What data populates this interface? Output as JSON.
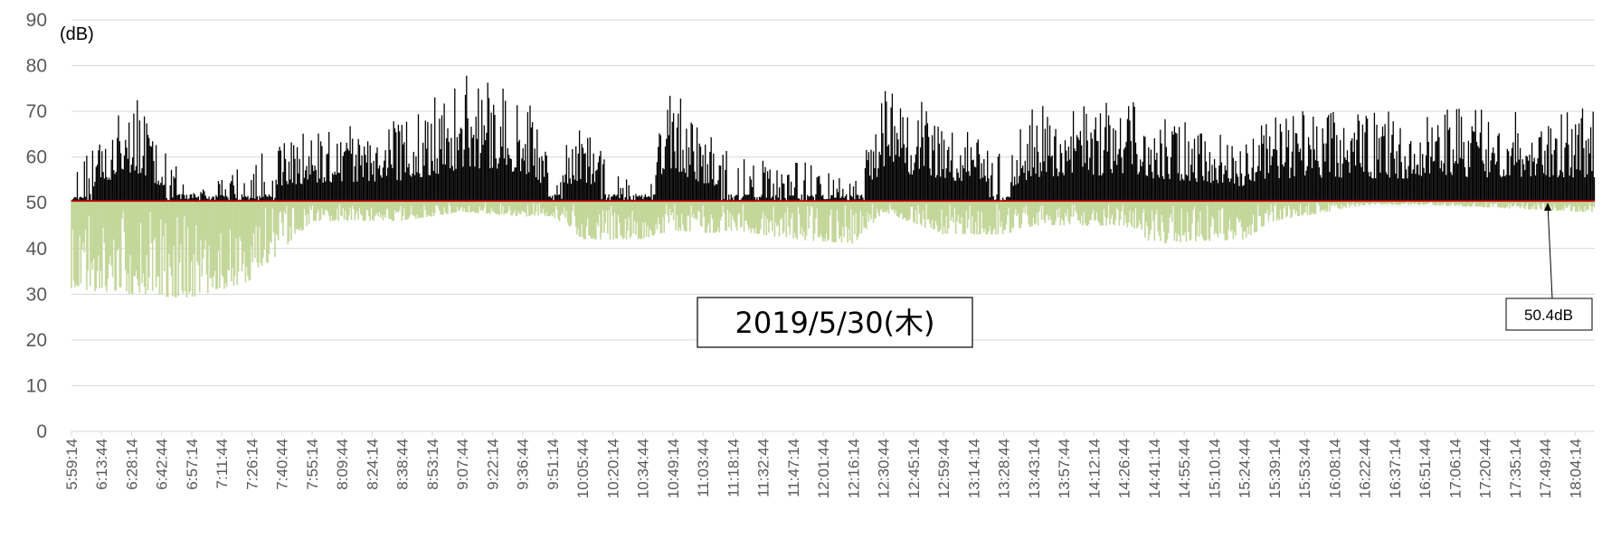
{
  "chart_data": {
    "type": "bar",
    "ylabel": "(dB)",
    "ylim": [
      0,
      90
    ],
    "yticks": [
      0,
      10,
      20,
      30,
      40,
      50,
      60,
      70,
      80,
      90
    ],
    "xticks": [
      "5:59:14",
      "6:13:44",
      "6:28:14",
      "6:42:44",
      "6:57:14",
      "7:11:44",
      "7:26:14",
      "7:40:44",
      "7:55:14",
      "8:09:44",
      "8:24:14",
      "8:38:44",
      "8:53:14",
      "9:07:44",
      "9:22:14",
      "9:36:44",
      "9:51:14",
      "10:05:44",
      "10:20:14",
      "10:34:44",
      "10:49:14",
      "11:03:44",
      "11:18:14",
      "11:32:44",
      "11:47:14",
      "12:01:44",
      "12:16:14",
      "12:30:44",
      "12:45:14",
      "12:59:44",
      "13:14:14",
      "13:28:44",
      "13:43:14",
      "13:57:44",
      "14:12:14",
      "14:26:44",
      "14:41:14",
      "14:55:44",
      "15:10:14",
      "15:24:44",
      "15:39:14",
      "15:53:44",
      "16:08:14",
      "16:22:44",
      "16:37:14",
      "16:51:44",
      "17:06:14",
      "17:20:44",
      "17:35:14",
      "17:49:44",
      "18:04:14"
    ],
    "baseline": 50.4,
    "baseline_label": "50.4dB",
    "grid": true,
    "series": [
      {
        "role": "above",
        "color": "#000000"
      },
      {
        "role": "below",
        "color": "#c4d79b"
      }
    ],
    "profile": {
      "x": [
        "5:59:14",
        "6:28:14",
        "6:57:14",
        "7:26:14",
        "7:55:14",
        "8:38:44",
        "9:07:44",
        "9:36:44",
        "9:51:14",
        "10:05:44",
        "10:34:44",
        "10:49:14",
        "11:03:44",
        "11:18:14",
        "11:47:14",
        "12:16:14",
        "12:30:44",
        "12:59:44",
        "13:28:44",
        "13:43:14",
        "14:26:44",
        "14:41:14",
        "15:24:44",
        "15:39:14",
        "16:22:44",
        "16:51:44",
        "17:20:44",
        "18:04:14"
      ],
      "below_min": [
        31,
        30,
        29,
        33,
        46,
        46,
        48,
        47,
        47,
        42,
        42,
        44,
        43,
        44,
        42,
        41,
        48,
        43,
        43,
        45,
        45,
        41,
        42,
        46,
        49.5,
        49.5,
        49,
        48
      ],
      "above_peak": [
        56,
        75,
        52,
        60,
        66,
        68,
        78,
        75,
        60,
        67,
        52,
        76,
        66,
        60,
        60,
        54,
        76,
        70,
        60,
        71,
        73,
        70,
        63,
        70,
        70,
        70,
        71,
        71
      ]
    },
    "annotations": [
      {
        "text": "2019/5/30(木)"
      },
      {
        "text": "50.4dB"
      }
    ]
  },
  "colors": {
    "above": "#000000",
    "below": "#c4d79b",
    "baseline": "#c00000",
    "grid": "#d9d9d9"
  }
}
